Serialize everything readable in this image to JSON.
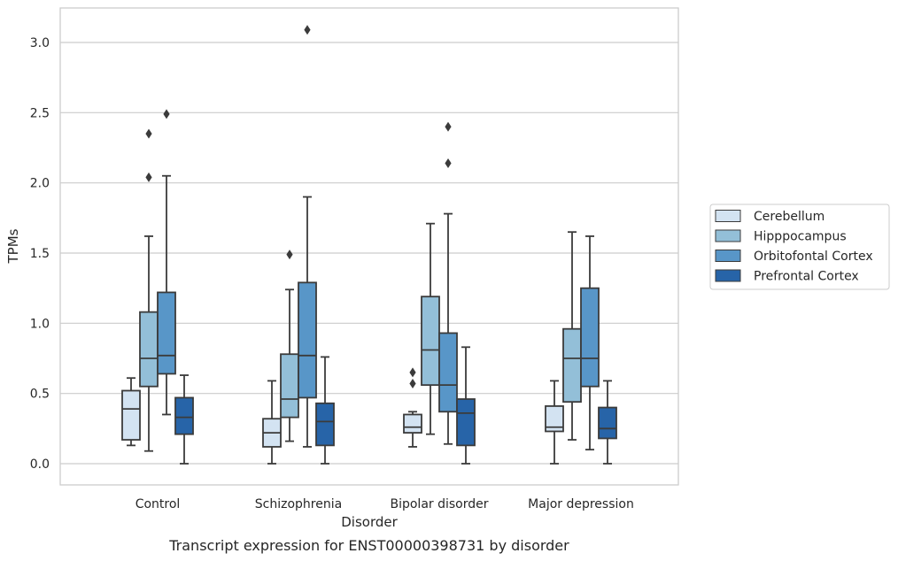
{
  "chart_data": {
    "type": "box",
    "title": "",
    "caption": "Transcript expression for ENST00000398731 by disorder",
    "xlabel": "Disorder",
    "ylabel": "TPMs",
    "ylim": [
      -0.15,
      3.25
    ],
    "yticks": [
      0.0,
      0.5,
      1.0,
      1.5,
      2.0,
      2.5,
      3.0
    ],
    "ytick_labels": [
      "0.0",
      "0.5",
      "1.0",
      "1.5",
      "2.0",
      "2.5",
      "3.0"
    ],
    "grid": "horizontal",
    "legend_position": "right",
    "categories": [
      "Control",
      "Schizophrenia",
      "Bipolar disorder",
      "Major depression"
    ],
    "series": [
      {
        "name": "Cerebellum",
        "color": "#d3e3f2",
        "boxes": [
          {
            "whisker_low": 0.13,
            "q1": 0.17,
            "median": 0.39,
            "q3": 0.52,
            "whisker_high": 0.61,
            "outliers": []
          },
          {
            "whisker_low": 0.0,
            "q1": 0.12,
            "median": 0.22,
            "q3": 0.32,
            "whisker_high": 0.59,
            "outliers": []
          },
          {
            "whisker_low": 0.12,
            "q1": 0.22,
            "median": 0.26,
            "q3": 0.35,
            "whisker_high": 0.37,
            "outliers": [
              0.57,
              0.65
            ]
          },
          {
            "whisker_low": 0.0,
            "q1": 0.23,
            "median": 0.26,
            "q3": 0.41,
            "whisker_high": 0.59,
            "outliers": []
          }
        ]
      },
      {
        "name": "Hipppocampus",
        "color": "#93bfd8",
        "boxes": [
          {
            "whisker_low": 0.09,
            "q1": 0.55,
            "median": 0.75,
            "q3": 1.08,
            "whisker_high": 1.62,
            "outliers": [
              2.04,
              2.35
            ]
          },
          {
            "whisker_low": 0.16,
            "q1": 0.33,
            "median": 0.46,
            "q3": 0.78,
            "whisker_high": 1.24,
            "outliers": [
              1.49
            ]
          },
          {
            "whisker_low": 0.21,
            "q1": 0.56,
            "median": 0.81,
            "q3": 1.19,
            "whisker_high": 1.71,
            "outliers": []
          },
          {
            "whisker_low": 0.17,
            "q1": 0.44,
            "median": 0.75,
            "q3": 0.96,
            "whisker_high": 1.65,
            "outliers": []
          }
        ]
      },
      {
        "name": "Orbitofontal Cortex",
        "color": "#5896c8",
        "boxes": [
          {
            "whisker_low": 0.35,
            "q1": 0.64,
            "median": 0.77,
            "q3": 1.22,
            "whisker_high": 2.05,
            "outliers": [
              2.49
            ]
          },
          {
            "whisker_low": 0.12,
            "q1": 0.47,
            "median": 0.77,
            "q3": 1.29,
            "whisker_high": 1.9,
            "outliers": [
              3.09
            ]
          },
          {
            "whisker_low": 0.14,
            "q1": 0.37,
            "median": 0.56,
            "q3": 0.93,
            "whisker_high": 1.78,
            "outliers": [
              2.14,
              2.4
            ]
          },
          {
            "whisker_low": 0.1,
            "q1": 0.55,
            "median": 0.75,
            "q3": 1.25,
            "whisker_high": 1.62,
            "outliers": []
          }
        ]
      },
      {
        "name": "Prefrontal Cortex",
        "color": "#2764a8",
        "boxes": [
          {
            "whisker_low": 0.0,
            "q1": 0.21,
            "median": 0.33,
            "q3": 0.47,
            "whisker_high": 0.63,
            "outliers": []
          },
          {
            "whisker_low": 0.0,
            "q1": 0.13,
            "median": 0.3,
            "q3": 0.43,
            "whisker_high": 0.76,
            "outliers": []
          },
          {
            "whisker_low": 0.0,
            "q1": 0.13,
            "median": 0.36,
            "q3": 0.46,
            "whisker_high": 0.83,
            "outliers": []
          },
          {
            "whisker_low": 0.0,
            "q1": 0.18,
            "median": 0.25,
            "q3": 0.4,
            "whisker_high": 0.59,
            "outliers": []
          }
        ]
      }
    ]
  }
}
